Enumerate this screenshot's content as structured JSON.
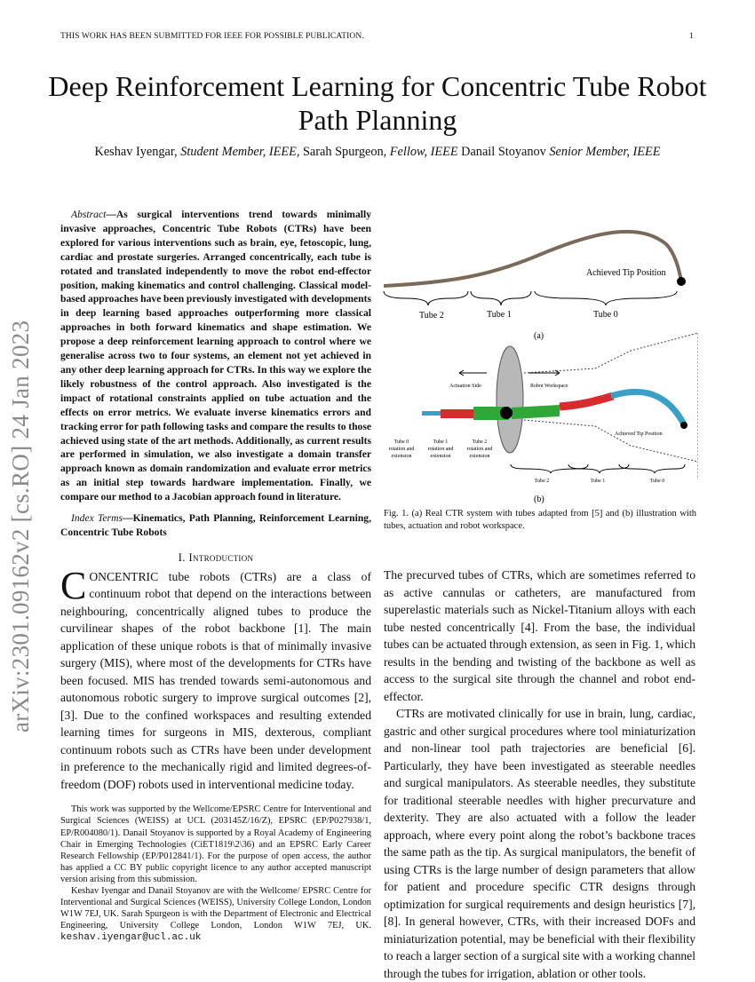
{
  "header": {
    "left": "THIS WORK HAS BEEN SUBMITTED FOR IEEE FOR POSSIBLE PUBLICATION.",
    "page": "1"
  },
  "title": "Deep Reinforcement Learning for Concentric Tube Robot Path Planning",
  "authors": [
    {
      "name": "Keshav Iyengar, ",
      "role": "Student Member, IEEE,"
    },
    {
      "name": " Sarah Spurgeon, ",
      "role": "Fellow, IEEE"
    },
    {
      "name": " Danail Stoyanov ",
      "role": "Senior Member, IEEE"
    }
  ],
  "arxiv_id": "arXiv:2301.09162v2  [cs.RO]  24 Jan 2023",
  "abstract": {
    "label": "Abstract",
    "text": "—As surgical interventions trend towards minimally invasive approaches, Concentric Tube Robots (CTRs) have been explored for various interventions such as brain, eye, fetoscopic, lung, cardiac and prostate surgeries. Arranged concentrically, each tube is rotated and translated independently to move the robot end-effector position, making kinematics and control challenging. Classical model-based approaches have been previously investigated with developments in deep learning based approaches outperforming more classical approaches in both forward kinematics and shape estimation. We propose a deep reinforcement learning approach to control where we generalise across two to four systems, an element not yet achieved in any other deep learning approach for CTRs. In this way we explore the likely robustness of the control approach. Also investigated is the impact of rotational constraints applied on tube actuation and the effects on error metrics. We evaluate inverse kinematics errors and tracking error for path following tasks and compare the results to those achieved using state of the art methods. Additionally, as current results are performed in simulation, we also investigate a domain transfer approach known as domain randomization and evaluate error metrics as an initial step towards hardware implementation. Finally, we compare our method to a Jacobian approach found in literature."
  },
  "index_terms": {
    "label": "Index Terms",
    "text": "—Kinematics, Path Planning, Reinforcement Learning, Concentric Tube Robots"
  },
  "section": "I. Introduction",
  "intro": {
    "dropcap": "C",
    "first_word": "ONCENTRIC",
    "text": " tube robots (CTRs) are a class of continuum robot that depend on the interactions between neighbouring, concentrically aligned tubes to produce the curvilinear shapes of the robot backbone [1]. The main application of these unique robots is that of minimally invasive surgery (MIS), where most of the developments for CTRs have been focused. MIS has trended towards semi-autonomous and autonomous robotic surgery to improve surgical outcomes [2], [3]. Due to the confined workspaces and resulting extended learning times for surgeons in MIS, dexterous, compliant continuum robots such as CTRs have been under development in preference to the mechanically rigid and limited degrees-of-freedom (DOF) robots used in interventional medicine today."
  },
  "footnotes": [
    "This work was supported by the Wellcome/EPSRC Centre for Interventional and Surgical Sciences (WEISS) at UCL (203145Z/16/Z), EPSRC (EP/P027938/1, EP/R004080/1). Danail Stoyanov is supported by a Royal Academy of Engineering Chair in Emerging Technologies (CiET1819\\2\\36) and an EPSRC Early Career Research Fellowship (EP/P012841/1). For the purpose of open access, the author has applied a CC BY public copyright licence to any author accepted manuscript version arising from this submission.",
    "Keshav Iyengar and Danail Stoyanov are with the Wellcome/ EPSRC Centre for Interventional and Surgical Sciences (WEISS), University College London, London W1W 7EJ, UK. Sarah Spurgeon is with the Department of Electronic and Electrical Engineering, University College London, London W1W 7EJ, UK. "
  ],
  "email": "keshav.iyengar@ucl.ac.uk",
  "figure": {
    "a": {
      "tip": "Achieved Tip Position",
      "tubes": [
        "Tube 2",
        "Tube 1",
        "Tube 0"
      ],
      "label": "(a)"
    },
    "b": {
      "actuation": "Actuation Side",
      "workspace": "Robot Workspace",
      "tip": "Achieved Tip Position",
      "actuators": [
        [
          "Tube 0",
          "rotation and",
          "extension"
        ],
        [
          "Tube 1",
          "rotation and",
          "extension"
        ],
        [
          "Tube 2",
          "rotation and",
          "extension"
        ]
      ],
      "tubes": [
        "Tube 2",
        "Tube 1",
        "Tube 0"
      ],
      "label": "(b)",
      "colors": {
        "tube0": "#3aa0c8",
        "tube1": "#d92b2b",
        "tube2": "#2ea836",
        "plate": "#b8b8b8"
      }
    },
    "caption": "Fig. 1.  (a) Real CTR system with tubes adapted from [5] and (b) illustration with tubes, actuation and robot workspace."
  },
  "right_paragraphs": [
    "The precurved tubes of CTRs, which are sometimes referred to as active cannulas or catheters, are manufactured from superelastic materials such as Nickel-Titanium alloys with each tube nested concentrically [4]. From the base, the individual tubes can be actuated through extension, as seen in Fig. 1, which results in the bending and twisting of the backbone as well as access to the surgical site through the channel and robot end-effector.",
    "CTRs are motivated clinically for use in brain, lung, cardiac, gastric and other surgical procedures where tool miniaturization and non-linear tool path trajectories are beneficial [6]. Particularly, they have been investigated as steerable needles and surgical manipulators. As steerable needles, they substitute for traditional steerable needles with higher precurvature and dexterity. They are also actuated with a follow the leader approach, where every point along the robot’s backbone traces the same path as the tip. As surgical manipulators, the benefit of using CTRs is the large number of design parameters that allow for patient and procedure specific CTR designs through optimization for surgical requirements and design heuristics [7], [8]. In general however, CTRs, with their increased DOFs and miniaturization potential, may be beneficial with their flexibility to reach a larger section of a surgical site with a working channel through the tubes for irrigation, ablation or other tools."
  ]
}
